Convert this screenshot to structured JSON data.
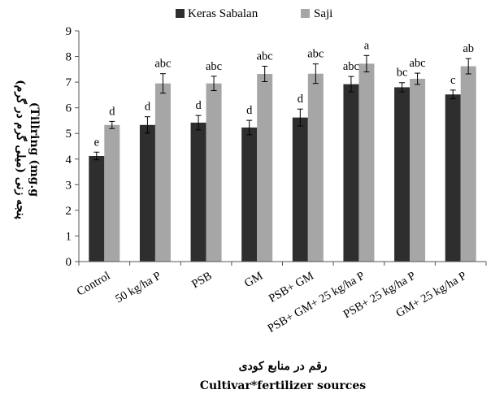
{
  "chart_data": {
    "type": "bar",
    "categories": [
      "Control",
      "50 kg/ha P",
      "PSB",
      "GM",
      "PSB+ GM",
      "PSB+ GM+ 25 kg/ha P",
      "PSB+ 25 kg/ha P",
      "GM+ 25 kg/ha P"
    ],
    "series": [
      {
        "name": "Keras Sabalan",
        "color": "#2e2e2e",
        "values": [
          4.12,
          5.33,
          5.42,
          5.23,
          5.62,
          6.92,
          6.8,
          6.52
        ],
        "errors": [
          0.15,
          0.32,
          0.28,
          0.28,
          0.33,
          0.3,
          0.18,
          0.17
        ],
        "letters": [
          "e",
          "d",
          "d",
          "d",
          "d",
          "abc",
          "bc",
          "c"
        ]
      },
      {
        "name": "Saji",
        "color": "#a6a6a6",
        "values": [
          5.33,
          6.95,
          6.95,
          7.32,
          7.33,
          7.72,
          7.13,
          7.62
        ],
        "errors": [
          0.14,
          0.38,
          0.28,
          0.3,
          0.38,
          0.32,
          0.22,
          0.3
        ],
        "letters": [
          "d",
          "abc",
          "abc",
          "abc",
          "abc",
          "a",
          "abc",
          "ab"
        ]
      }
    ],
    "title": "",
    "ylabel_fa": "پنجه زنی (میلی گرم در گرم)",
    "ylabel_en": "(Tillring (mg.g",
    "xlabel_fa": "رقم در منابع کودی",
    "xlabel_en": "Cultivar*fertilizer sources",
    "ylim": [
      0,
      9
    ],
    "yticks": [
      "0",
      "1",
      "2",
      "3",
      "4",
      "5",
      "6",
      "7",
      "8",
      "9"
    ],
    "grid": false,
    "legend_position": "top"
  }
}
